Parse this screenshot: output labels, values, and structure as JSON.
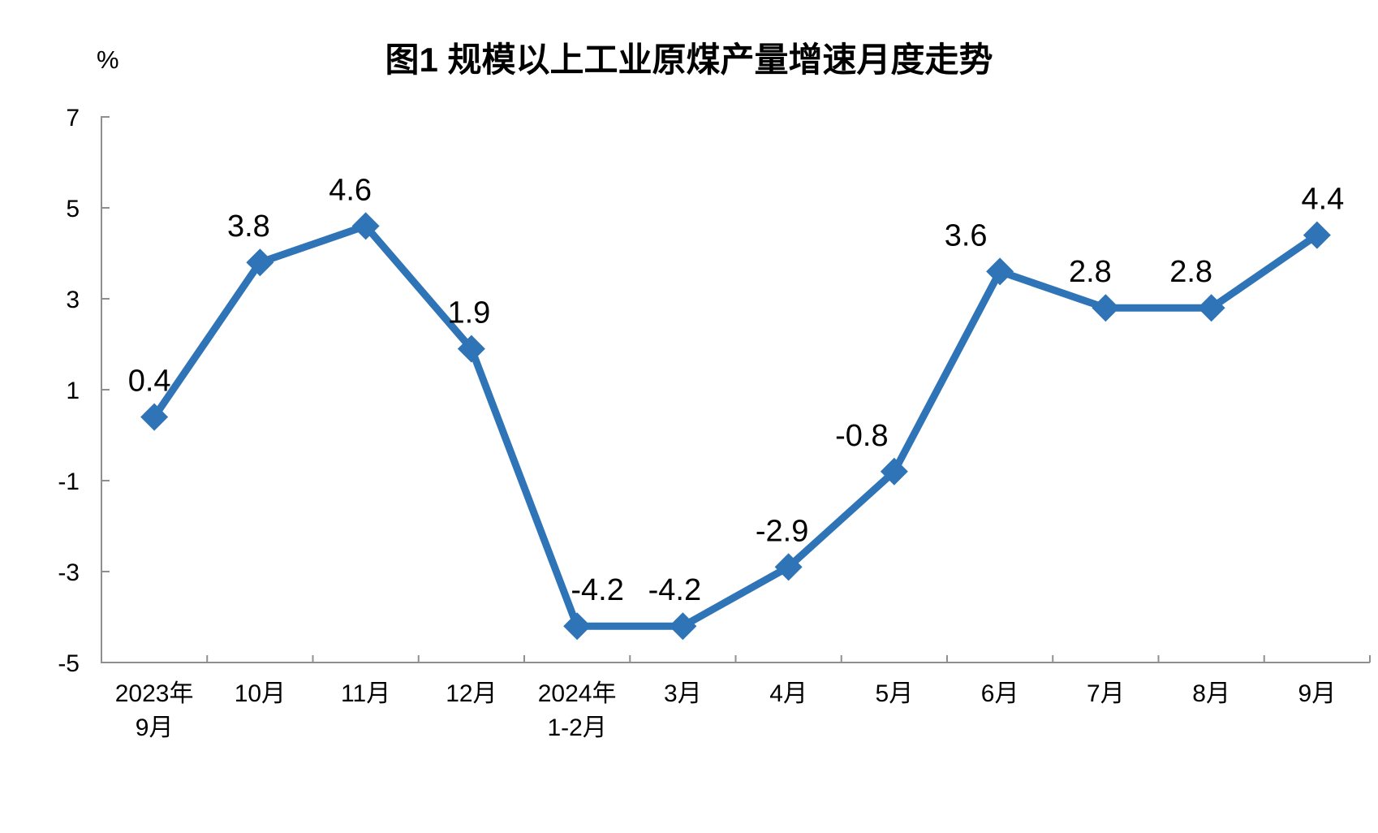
{
  "chart_data": {
    "type": "line",
    "title": "图1  规模以上工业原煤产量增速月度走势",
    "ylabel": "%",
    "categories": [
      [
        "2023年",
        "9月"
      ],
      [
        "10月"
      ],
      [
        "11月"
      ],
      [
        "12月"
      ],
      [
        "2024年",
        "1-2月"
      ],
      [
        "3月"
      ],
      [
        "4月"
      ],
      [
        "5月"
      ],
      [
        "6月"
      ],
      [
        "7月"
      ],
      [
        "8月"
      ],
      [
        "9月"
      ]
    ],
    "values": [
      0.4,
      3.8,
      4.6,
      1.9,
      -4.2,
      -4.2,
      -2.9,
      -0.8,
      3.6,
      2.8,
      2.8,
      4.4
    ],
    "data_labels": [
      "0.4",
      "3.8",
      "4.6",
      "1.9",
      "-4.2",
      "-4.2",
      "-2.9",
      "-0.8",
      "3.6",
      "2.8",
      "2.8",
      "4.4"
    ],
    "y_ticks": [
      7,
      5,
      3,
      1,
      -1,
      -3,
      -5
    ],
    "ylim": [
      -5,
      7
    ],
    "y_tick_interval": 2,
    "grid": false,
    "legend": "none",
    "marker": "diamond",
    "colors": {
      "line": "#2E74B6",
      "marker": "#2E74B6",
      "axis": "#8F8F8F",
      "text": "#000000",
      "background": "#FFFFFF"
    }
  }
}
